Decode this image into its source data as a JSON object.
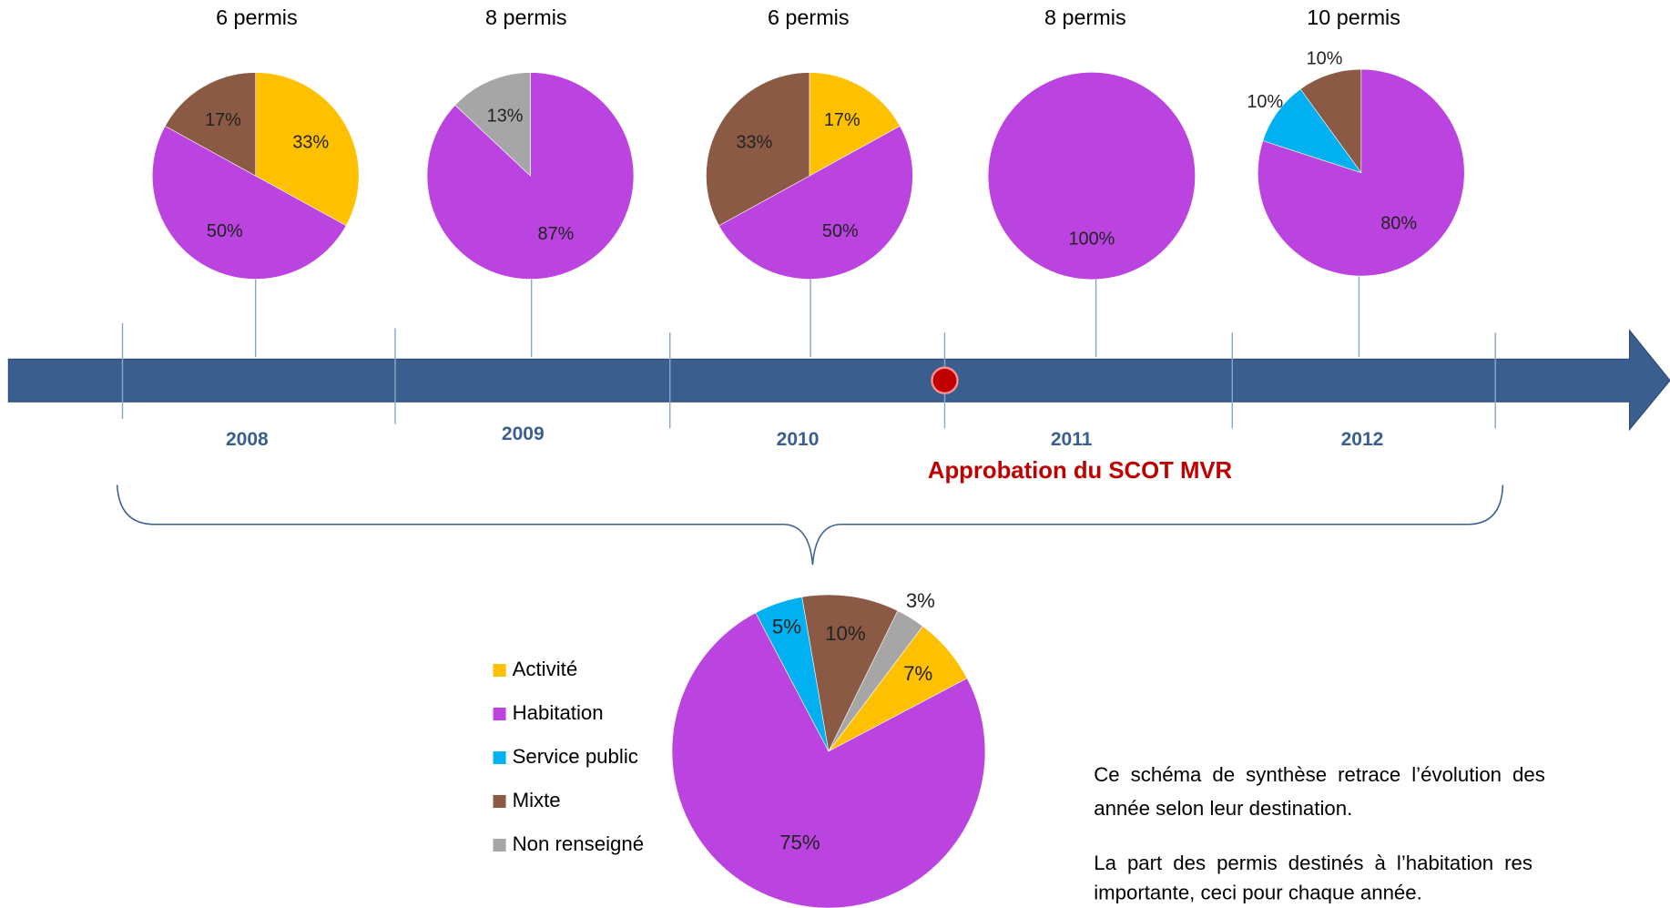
{
  "chart_data": [
    {
      "type": "pie",
      "title": "6 permis",
      "categories": [
        "Activité",
        "Habitation",
        "Mixte"
      ],
      "values": [
        33,
        50,
        17
      ],
      "value_labels": [
        "33%",
        "50%",
        "17%"
      ],
      "colors": [
        "#ffc000",
        "#bb44e0",
        "#8b5a44"
      ]
    },
    {
      "type": "pie",
      "title": "8 permis",
      "categories": [
        "Habitation",
        "Non renseigné"
      ],
      "values": [
        87,
        13
      ],
      "value_labels": [
        "87%",
        "13%"
      ],
      "colors": [
        "#bb44e0",
        "#a6a6a6"
      ]
    },
    {
      "type": "pie",
      "title": "6 permis",
      "categories": [
        "Activité",
        "Habitation",
        "Mixte"
      ],
      "values": [
        17,
        50,
        33
      ],
      "value_labels": [
        "17%",
        "50%",
        "33%"
      ],
      "colors": [
        "#ffc000",
        "#bb44e0",
        "#8b5a44"
      ]
    },
    {
      "type": "pie",
      "title": "8 permis",
      "categories": [
        "Habitation"
      ],
      "values": [
        100
      ],
      "value_labels": [
        "100%"
      ],
      "colors": [
        "#bb44e0"
      ]
    },
    {
      "type": "pie",
      "title": "10 permis",
      "categories": [
        "Habitation",
        "Service public",
        "Mixte"
      ],
      "values": [
        80,
        10,
        10
      ],
      "value_labels": [
        "80%",
        "10%",
        "10%"
      ],
      "colors": [
        "#bb44e0",
        "#00b0f0",
        "#8b5a44"
      ]
    },
    {
      "type": "pie",
      "categories": [
        "Activité",
        "Habitation",
        "Service public",
        "Mixte",
        "Non renseigné"
      ],
      "values": [
        7,
        75,
        5,
        10,
        3
      ],
      "value_labels": [
        "7%",
        "75%",
        "5%",
        "10%",
        "3%"
      ],
      "colors": [
        "#ffc000",
        "#bb44e0",
        "#00b0f0",
        "#8b5a44",
        "#a6a6a6"
      ],
      "startangle": 37,
      "legend": true
    }
  ],
  "timeline": {
    "years": [
      "2008",
      "2009",
      "2010",
      "2011",
      "2012"
    ],
    "annotation": "Approbation du SCOT MVR"
  },
  "notes": [
    "Ce schéma de synthèse retrace l’évolution des",
    "année selon leur destination.",
    "La part des permis destinés à l’habitation res",
    "importante, ceci pour chaque année."
  ]
}
